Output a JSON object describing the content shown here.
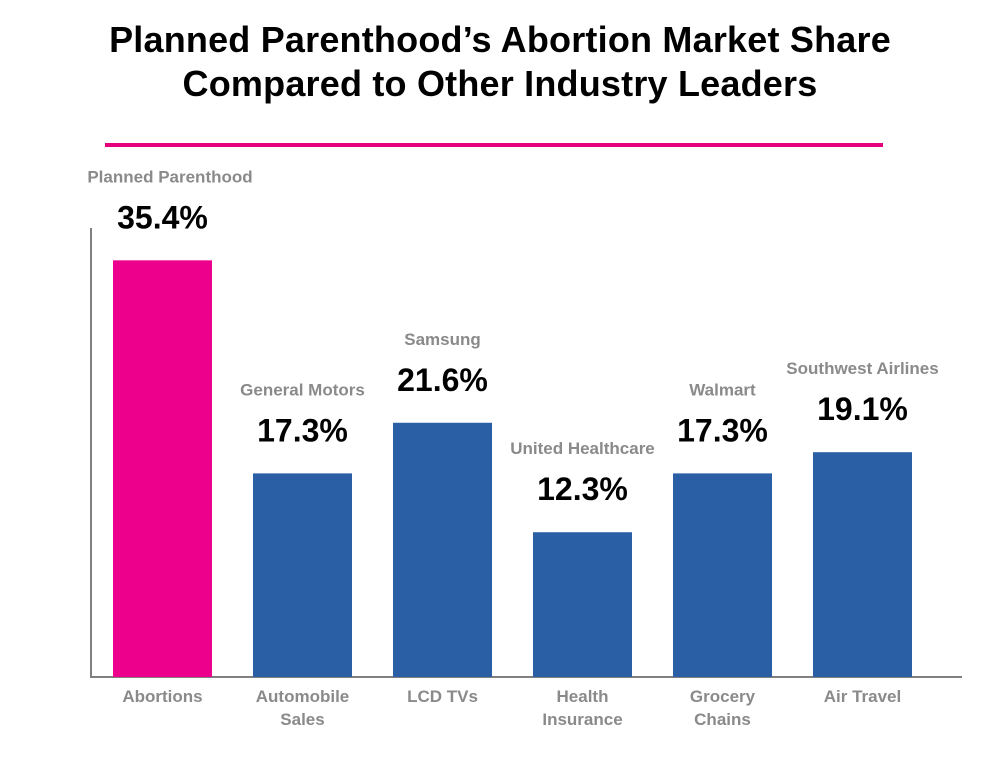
{
  "title_line1": "Planned Parenthood’s Abortion Market Share",
  "title_line2": "Compared to Other Industry Leaders",
  "colors": {
    "accent": "#e5007e",
    "bar_highlight": "#ec008c",
    "bar_default": "#2a5fa6",
    "axis": "#808080",
    "label_gray": "#8a8a8a"
  },
  "chart_data": {
    "type": "bar",
    "title": "Planned Parenthood’s Abortion Market Share Compared to Other Industry Leaders",
    "categories": [
      [
        "Abortions"
      ],
      [
        "Automobile",
        "Sales"
      ],
      [
        "LCD TVs"
      ],
      [
        "Health",
        "Insurance"
      ],
      [
        "Grocery",
        "Chains"
      ],
      [
        "Air Travel"
      ]
    ],
    "companies": [
      "Planned Parenthood",
      "General Motors",
      "Samsung",
      "United Healthcare",
      "Walmart",
      "Southwest Airlines"
    ],
    "values": [
      35.4,
      17.3,
      21.6,
      12.3,
      17.3,
      19.1
    ],
    "value_labels": [
      "35.4%",
      "17.3%",
      "21.6%",
      "12.3%",
      "17.3%",
      "19.1%"
    ],
    "highlight_index": 0,
    "ylim": [
      0,
      40
    ],
    "grid": false,
    "legend": "none"
  }
}
